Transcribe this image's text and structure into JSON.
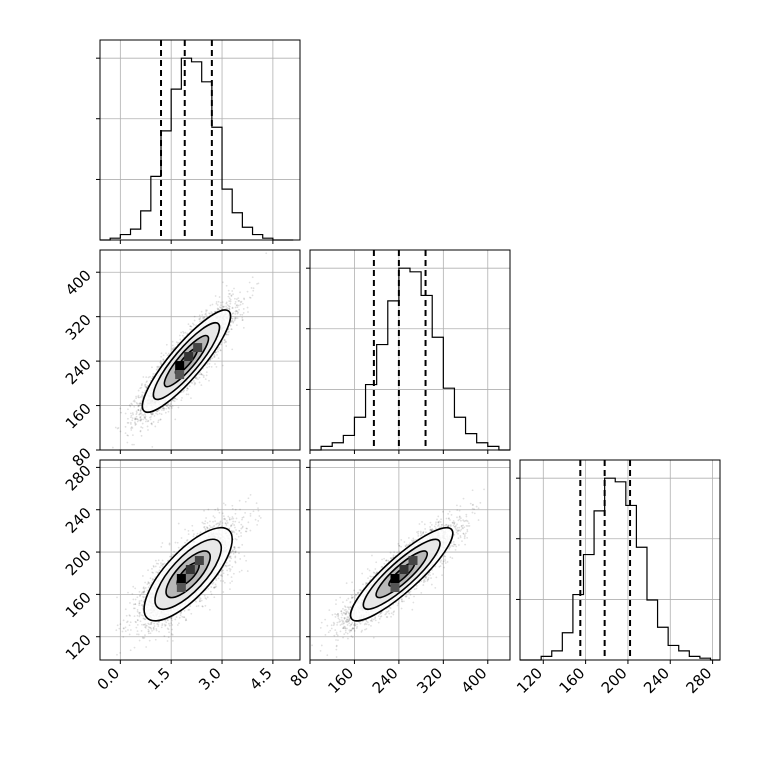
{
  "chart_data": {
    "type": "corner",
    "parameters": [
      {
        "name": "",
        "range": [
          -0.6,
          5.3
        ],
        "ticks": [
          0.0,
          1.5,
          3.0,
          4.5
        ],
        "tick_labels": [
          "0.0",
          "1.5",
          "3.0",
          "4.5"
        ],
        "quantiles": [
          1.2,
          1.9,
          2.7
        ]
      },
      {
        "name": "",
        "range": [
          80,
          440
        ],
        "ticks": [
          80,
          160,
          240,
          320,
          400
        ],
        "tick_labels": [
          "80",
          "160",
          "240",
          "320",
          "400"
        ],
        "quantiles": [
          195,
          240,
          288
        ]
      },
      {
        "name": "",
        "range": [
          98,
          287
        ],
        "ticks": [
          120,
          160,
          200,
          240,
          280
        ],
        "tick_labels": [
          "120",
          "160",
          "200",
          "240",
          "280"
        ],
        "quantiles": [
          155,
          178,
          202
        ]
      }
    ],
    "histograms": [
      {
        "param": 0,
        "bins": [
          -0.6,
          -0.3,
          0.0,
          0.3,
          0.6,
          0.9,
          1.2,
          1.5,
          1.8,
          2.1,
          2.4,
          2.7,
          3.0,
          3.3,
          3.6,
          3.9,
          4.2,
          4.5,
          4.8,
          5.1
        ],
        "counts": [
          0,
          1,
          3,
          6,
          16,
          35,
          60,
          83,
          100,
          98,
          87,
          62,
          28,
          15,
          7,
          3,
          1,
          0,
          0
        ]
      },
      {
        "param": 1,
        "bins": [
          80,
          100,
          120,
          140,
          160,
          180,
          200,
          220,
          240,
          260,
          280,
          300,
          320,
          340,
          360,
          380,
          400,
          420,
          440
        ],
        "counts": [
          0,
          2,
          4,
          8,
          18,
          36,
          58,
          82,
          100,
          98,
          85,
          62,
          34,
          18,
          9,
          4,
          2,
          0
        ]
      },
      {
        "param": 2,
        "bins": [
          98,
          108,
          118,
          128,
          138,
          148,
          158,
          168,
          178,
          188,
          198,
          208,
          218,
          228,
          238,
          248,
          258,
          268,
          278,
          287
        ],
        "counts": [
          0,
          0,
          2,
          5,
          15,
          36,
          58,
          82,
          100,
          98,
          85,
          62,
          33,
          18,
          8,
          5,
          2,
          1,
          0
        ]
      }
    ],
    "scatter": [
      {
        "x_param": 0,
        "y_param": 1,
        "mean": [
          1.95,
          240
        ],
        "std": [
          0.65,
          46
        ],
        "correlation": 0.88,
        "peak": [
          1.75,
          232
        ],
        "n_samples": 4000
      },
      {
        "x_param": 0,
        "y_param": 2,
        "mean": [
          2.0,
          179
        ],
        "std": [
          0.65,
          22
        ],
        "correlation": 0.75,
        "peak": [
          1.8,
          175
        ],
        "n_samples": 4000
      },
      {
        "x_param": 1,
        "y_param": 2,
        "mean": [
          245,
          179
        ],
        "std": [
          46,
          22
        ],
        "correlation": 0.88,
        "peak": [
          233,
          175
        ],
        "n_samples": 4000
      }
    ],
    "contour_levels": [
      0.5,
      1.0,
      1.5,
      2.0
    ],
    "grid": true,
    "histogram_yticks": [
      0.333,
      0.667,
      1.0
    ]
  }
}
